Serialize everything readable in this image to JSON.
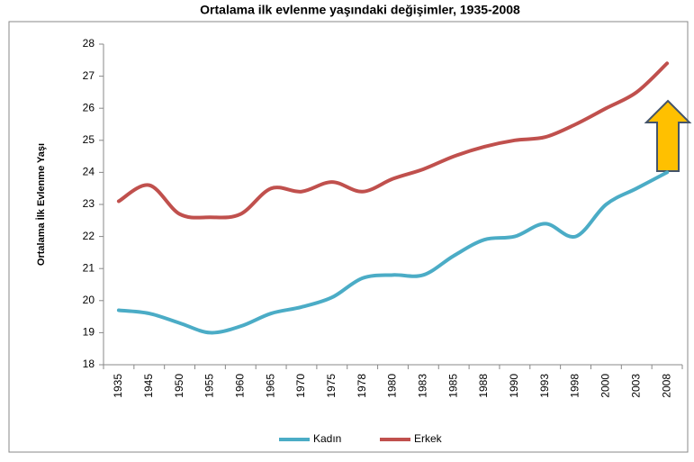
{
  "chart_data": {
    "type": "line",
    "title": "Ortalama ilk evlenme yaşındaki değişimler, 1935-2008",
    "y_label": "Ortalama İlk Evlenme Yaşı",
    "categories": [
      "1935",
      "1945",
      "1950",
      "1955",
      "1960",
      "1965",
      "1970",
      "1975",
      "1978",
      "1980",
      "1983",
      "1985",
      "1988",
      "1990",
      "1993",
      "1998",
      "2000",
      "2003",
      "2008"
    ],
    "series": [
      {
        "name": "Kadın",
        "color": "#4bacc6",
        "values": [
          19.7,
          19.6,
          19.3,
          19.0,
          19.2,
          19.6,
          19.8,
          20.1,
          20.7,
          20.8,
          20.8,
          21.4,
          21.9,
          22.0,
          22.4,
          22.0,
          23.0,
          23.5,
          24.0
        ]
      },
      {
        "name": "Erkek",
        "color": "#c0504d",
        "values": [
          23.1,
          23.6,
          22.7,
          22.6,
          22.7,
          23.5,
          23.4,
          23.7,
          23.4,
          23.8,
          24.1,
          24.5,
          24.8,
          25.0,
          25.1,
          25.5,
          26.0,
          26.5,
          27.4
        ]
      }
    ],
    "ylim": [
      18,
      28
    ],
    "yticks": [
      18,
      19,
      20,
      21,
      22,
      23,
      24,
      25,
      26,
      27,
      28
    ],
    "legend": "bottom"
  }
}
